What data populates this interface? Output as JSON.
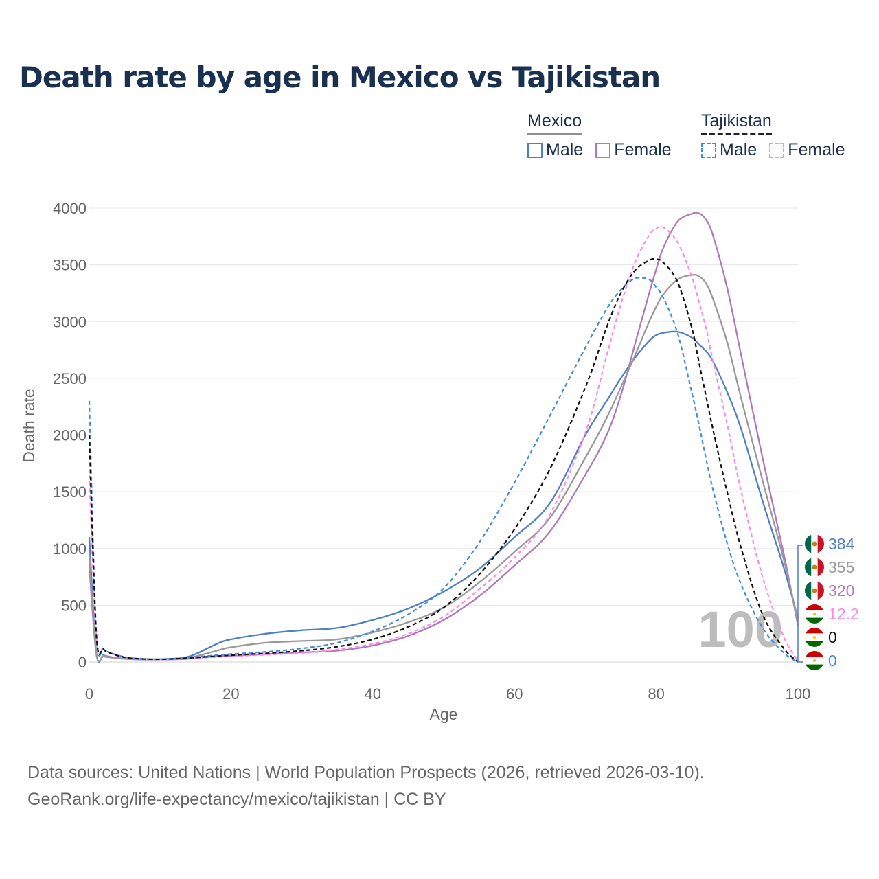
{
  "title": "Death rate by age in Mexico vs Tajikistan",
  "legend": {
    "mexico": {
      "label": "Mexico",
      "male": "Male",
      "female": "Female"
    },
    "tajikistan": {
      "label": "Tajikistan",
      "male": "Male",
      "female": "Female"
    }
  },
  "colors": {
    "mexico_male": "#4f7fc6",
    "mexico_female": "#b079bd",
    "mexico_total": "#999999",
    "tajikistan_male": "#3f8ce8",
    "tajikistan_female": "#ff88e8",
    "tajikistan_total": "#111111",
    "title": "#1a3050"
  },
  "watermark": "100",
  "footer": {
    "line1": "Data sources: United Nations | World Population Prospects (2026, retrieved 2026-03-10).",
    "line2": "GeoRank.org/life-expectancy/mexico/tajikistan | CC BY"
  },
  "chart_data": {
    "type": "line",
    "title": "Death rate by age in Mexico vs Tajikistan",
    "xlabel": "Age",
    "ylabel": "Death rate",
    "xlim": [
      0,
      100
    ],
    "ylim": [
      0,
      4000
    ],
    "xticks": [
      0,
      20,
      40,
      60,
      80,
      100
    ],
    "yticks": [
      0,
      500,
      1000,
      1500,
      2000,
      2500,
      3000,
      3500,
      4000
    ],
    "grid": true,
    "x": [
      0,
      1,
      2,
      3,
      5,
      7,
      10,
      13,
      15,
      18,
      20,
      25,
      30,
      35,
      40,
      45,
      50,
      55,
      60,
      65,
      70,
      73,
      75,
      77,
      79,
      80,
      81,
      83,
      85,
      86,
      87,
      88,
      90,
      92,
      95,
      98,
      100
    ],
    "series": [
      {
        "name": "Mexico Male",
        "country": "Mexico",
        "dashed": false,
        "colorKey": "mexico_male",
        "values": [
          1100,
          80,
          60,
          45,
          30,
          25,
          25,
          35,
          70,
          160,
          200,
          250,
          280,
          300,
          370,
          470,
          620,
          820,
          1100,
          1400,
          2000,
          2300,
          2500,
          2680,
          2830,
          2880,
          2900,
          2910,
          2860,
          2800,
          2740,
          2650,
          2380,
          2050,
          1420,
          830,
          384
        ]
      },
      {
        "name": "Mexico Female",
        "country": "Mexico",
        "dashed": false,
        "colorKey": "mexico_female",
        "values": [
          850,
          70,
          50,
          40,
          28,
          22,
          22,
          25,
          35,
          50,
          55,
          70,
          85,
          100,
          145,
          230,
          370,
          580,
          850,
          1150,
          1650,
          2000,
          2350,
          2800,
          3250,
          3460,
          3650,
          3880,
          3950,
          3955,
          3900,
          3760,
          3300,
          2700,
          1800,
          950,
          320
        ]
      },
      {
        "name": "Mexico Total",
        "country": "Mexico",
        "dashed": false,
        "colorKey": "mexico_total",
        "values": [
          950,
          75,
          55,
          42,
          29,
          23,
          23,
          30,
          50,
          100,
          130,
          170,
          185,
          200,
          260,
          350,
          480,
          700,
          970,
          1270,
          1800,
          2150,
          2420,
          2700,
          3000,
          3130,
          3240,
          3370,
          3410,
          3400,
          3340,
          3200,
          2820,
          2320,
          1600,
          900,
          355
        ]
      },
      {
        "name": "Tajikistan Male",
        "country": "Tajikistan",
        "dashed": true,
        "colorKey": "tajikistan_male",
        "values": [
          2300,
          250,
          120,
          80,
          45,
          30,
          25,
          35,
          45,
          60,
          70,
          90,
          120,
          170,
          270,
          420,
          650,
          1050,
          1580,
          2170,
          2770,
          3110,
          3280,
          3380,
          3370,
          3300,
          3210,
          2900,
          2380,
          2100,
          1800,
          1520,
          1050,
          680,
          300,
          80,
          0
        ]
      },
      {
        "name": "Tajikistan Female",
        "country": "Tajikistan",
        "dashed": true,
        "colorKey": "tajikistan_female",
        "values": [
          1650,
          220,
          110,
          75,
          40,
          28,
          23,
          28,
          35,
          45,
          50,
          65,
          80,
          110,
          160,
          250,
          400,
          640,
          920,
          1300,
          2020,
          2700,
          3150,
          3520,
          3760,
          3820,
          3830,
          3700,
          3400,
          3180,
          2950,
          2650,
          2100,
          1500,
          750,
          220,
          12.2
        ]
      },
      {
        "name": "Tajikistan Total",
        "country": "Tajikistan",
        "dashed": true,
        "colorKey": "tajikistan_total",
        "values": [
          2000,
          240,
          115,
          78,
          42,
          29,
          24,
          32,
          40,
          52,
          60,
          77,
          100,
          135,
          200,
          310,
          480,
          770,
          1170,
          1700,
          2420,
          2950,
          3250,
          3450,
          3540,
          3550,
          3520,
          3350,
          2950,
          2650,
          2350,
          2050,
          1500,
          1000,
          420,
          120,
          0
        ]
      }
    ],
    "end_labels": [
      {
        "series": "Mexico Male",
        "flag": "mexico",
        "text": "384",
        "colorKey": "mexico_male"
      },
      {
        "series": "Mexico Total",
        "flag": "mexico",
        "text": "355",
        "colorKey": "mexico_total"
      },
      {
        "series": "Mexico Female",
        "flag": "mexico",
        "text": "320",
        "colorKey": "mexico_female"
      },
      {
        "series": "Tajikistan Female",
        "flag": "tajikistan",
        "text": "12.2",
        "colorKey": "tajikistan_female"
      },
      {
        "series": "Tajikistan Total",
        "flag": "tajikistan",
        "text": "0",
        "colorKey": "tajikistan_total"
      },
      {
        "series": "Tajikistan Male",
        "flag": "tajikistan",
        "text": "0",
        "colorKey": "tajikistan_male"
      }
    ]
  }
}
